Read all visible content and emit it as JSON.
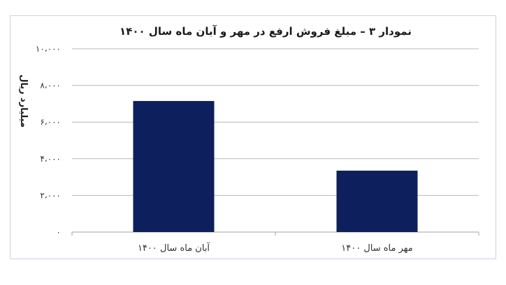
{
  "chart_data": {
    "type": "bar",
    "title": "نمودار ۳ – مبلغ فروش ارفع در مهر و آبان ماه سال ۱۴۰۰",
    "xlabel": "",
    "ylabel": "میلیارد ریال",
    "categories": [
      "آبان ماه سال ۱۴۰۰",
      "مهر ماه سال ۱۴۰۰"
    ],
    "values": [
      7150,
      3350
    ],
    "ylim": [
      0,
      10000
    ],
    "yticks": [
      0,
      2000,
      4000,
      6000,
      8000,
      10000
    ],
    "ytick_labels": [
      "۰",
      "۲،۰۰۰",
      "۴،۰۰۰",
      "۶،۰۰۰",
      "۸،۰۰۰",
      "۱۰،۰۰۰"
    ],
    "grid": true,
    "legend": "none",
    "bar_color": "#0d1f5c"
  }
}
